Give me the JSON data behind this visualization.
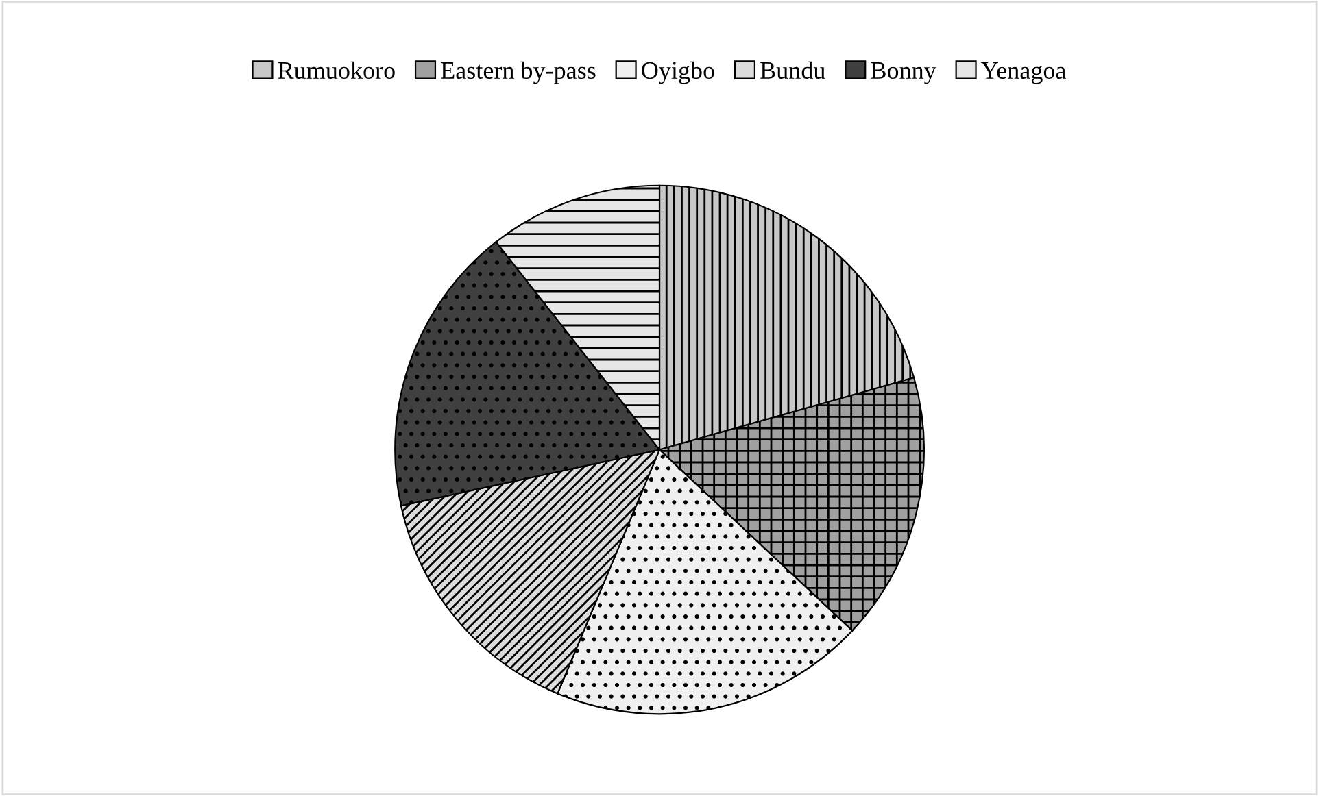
{
  "chart_data": {
    "type": "pie",
    "categories": [
      "Rumuokoro",
      "Eastern by-pass",
      "Oyigbo",
      "Bundu",
      "Bonny",
      "Yenagoa"
    ],
    "values": [
      20.6,
      16.4,
      19.3,
      15.3,
      17.8,
      10.6
    ],
    "colors": [
      "#c8c8c8",
      "#a0a0a0",
      "#f0f0f0",
      "#dcdcdc",
      "#404040",
      "#e6e6e6"
    ],
    "legend": "top"
  }
}
